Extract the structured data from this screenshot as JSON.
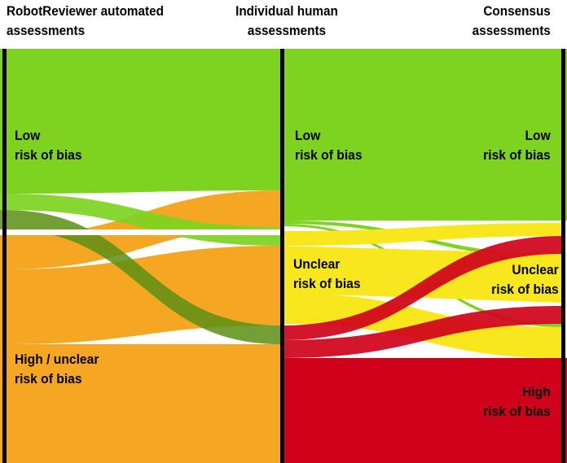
{
  "headers": {
    "robot": [
      "RobotReviewer automated",
      "assessments"
    ],
    "individual": [
      "Individual human",
      "assessments"
    ],
    "consensus": [
      "Consensus",
      "assessments"
    ]
  },
  "nodes": {
    "robot_low": [
      "Low",
      "risk of bias"
    ],
    "robot_high_unclear": [
      "High / unclear",
      "risk of bias"
    ],
    "human_low": [
      "Low",
      "risk of bias"
    ],
    "human_unclear": [
      "Unclear",
      "risk of bias"
    ],
    "consensus_low": [
      "Low",
      "risk of bias"
    ],
    "consensus_unclear": [
      "Unclear",
      "risk of bias"
    ],
    "consensus_high": [
      "High",
      "risk of bias"
    ]
  },
  "colors": {
    "low": "#7ed321",
    "high_unclear": "#f5a623",
    "unclear": "#f8e71c",
    "high": "#d0021b",
    "axis": "#000000"
  }
}
